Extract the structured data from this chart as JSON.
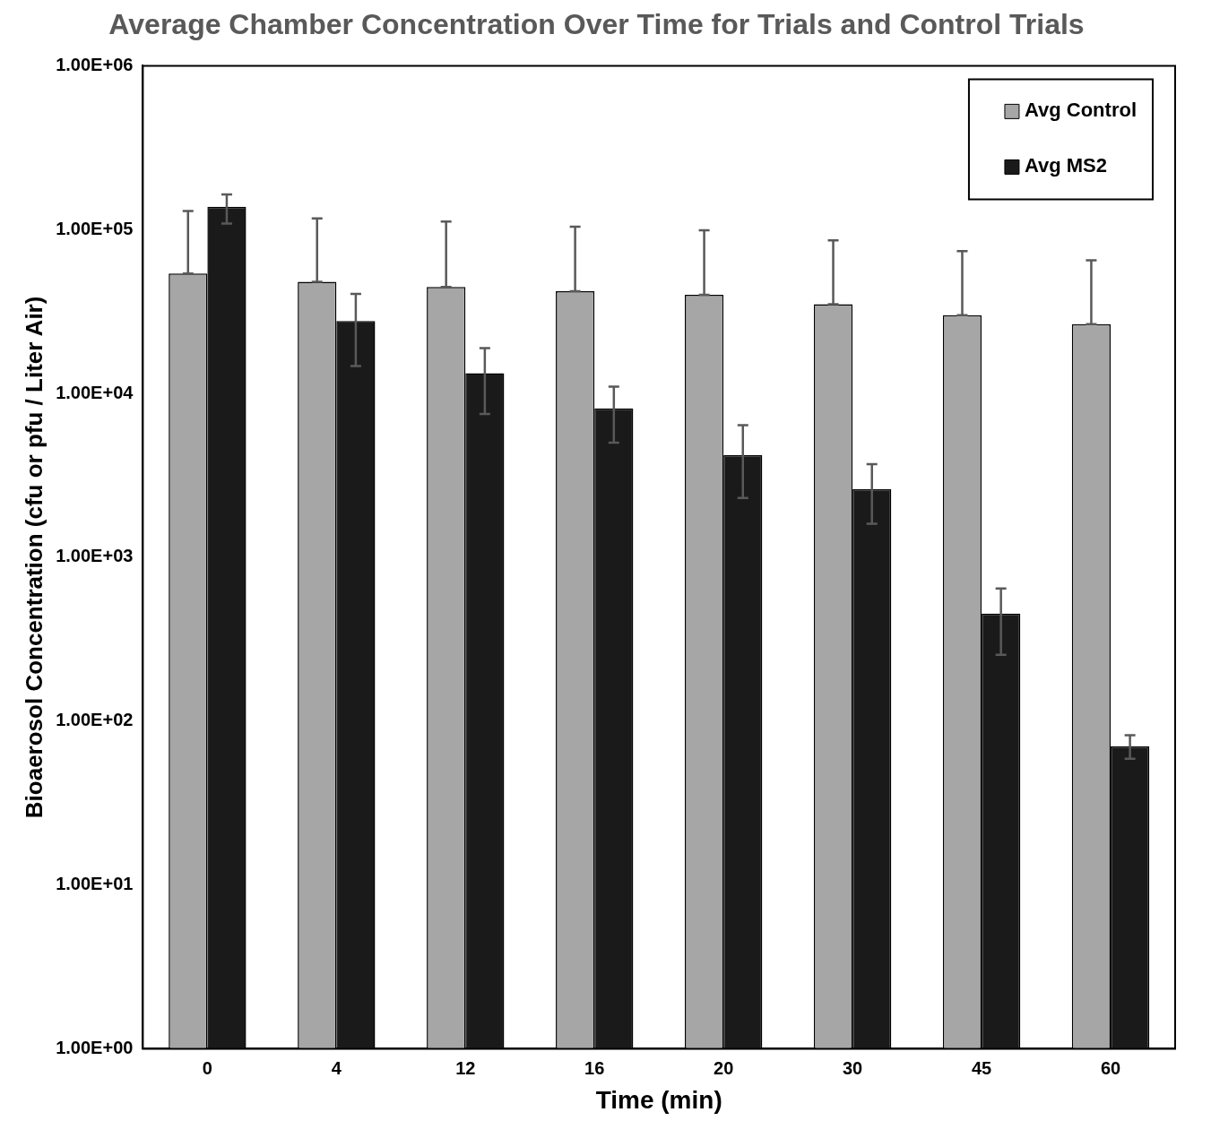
{
  "chart_data": {
    "type": "bar",
    "title": "Average Chamber Concentration Over Time for Trials and Control Trials",
    "xlabel": "Time (min)",
    "ylabel": "Bioaerosol Concentration (cfu or pfu / Liter Air)",
    "categories": [
      "0",
      "4",
      "12",
      "16",
      "20",
      "30",
      "45",
      "60"
    ],
    "series": [
      {
        "name": "Avg Control",
        "color": "#a6a6a6",
        "values": [
          54000,
          48000,
          44700,
          42000,
          40000,
          35000,
          30000,
          26500
        ],
        "errors": [
          [
            54000,
            130000
          ],
          [
            48000,
            117000
          ],
          [
            44700,
            112000
          ],
          [
            42000,
            104000
          ],
          [
            40000,
            99000
          ],
          [
            35000,
            86000
          ],
          [
            30000,
            74000
          ],
          [
            26500,
            65000
          ]
        ]
      },
      {
        "name": "Avg MS2",
        "color": "#1a1a1a",
        "values": [
          138000,
          27700,
          13300,
          8100,
          4200,
          2600,
          453,
          70
        ],
        "errors": [
          [
            109000,
            164000
          ],
          [
            14700,
            40500
          ],
          [
            7500,
            18900
          ],
          [
            5000,
            11000
          ],
          [
            2300,
            6400
          ],
          [
            1600,
            3700
          ],
          [
            254,
            645
          ],
          [
            59,
            82
          ]
        ]
      }
    ],
    "log": "y",
    "ylim": [
      1,
      1000000
    ],
    "yticks": [
      {
        "value": 1,
        "label": "1.00E+00"
      },
      {
        "value": 10,
        "label": "1.00E+01"
      },
      {
        "value": 100,
        "label": "1.00E+02"
      },
      {
        "value": 1000,
        "label": "1.00E+03"
      },
      {
        "value": 10000,
        "label": "1.00E+04"
      },
      {
        "value": 100000,
        "label": "1.00E+05"
      },
      {
        "value": 1000000,
        "label": "1.00E+06"
      }
    ],
    "grid": false,
    "legend": "top right"
  }
}
